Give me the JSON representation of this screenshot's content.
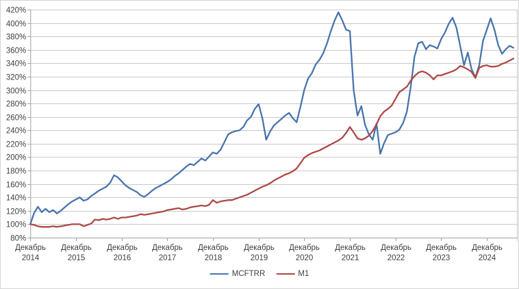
{
  "chart_data": {
    "type": "line",
    "title": "",
    "grid": true,
    "legend_position": "bottom-center",
    "y_axis": {
      "min": 80,
      "max": 420,
      "step": 20,
      "format": "percent"
    },
    "y_tick_labels": [
      "420%",
      "400%",
      "380%",
      "360%",
      "340%",
      "320%",
      "300%",
      "280%",
      "260%",
      "240%",
      "220%",
      "200%",
      "180%",
      "160%",
      "140%",
      "120%",
      "100%",
      "80%"
    ],
    "x_tick_month_word": "Декабрь",
    "x_tick_years": [
      "2014",
      "2015",
      "2016",
      "2017",
      "2018",
      "2019",
      "2020",
      "2021",
      "2022",
      "2023",
      "2024"
    ],
    "months_per_tick": 12,
    "series": [
      {
        "name": "MCFTRR",
        "color": "#4874AE",
        "values": [
          100,
          117,
          126,
          118,
          123,
          118,
          121,
          116,
          120,
          125,
          130,
          134,
          137,
          140,
          135,
          137,
          142,
          146,
          150,
          153,
          156,
          162,
          173,
          170,
          164,
          158,
          154,
          151,
          148,
          143,
          141,
          145,
          150,
          154,
          157,
          160,
          163,
          167,
          172,
          176,
          181,
          186,
          190,
          188,
          193,
          198,
          195,
          201,
          207,
          205,
          211,
          222,
          234,
          237,
          239,
          240,
          245,
          255,
          260,
          272,
          279,
          258,
          226,
          238,
          247,
          252,
          257,
          262,
          266,
          258,
          252,
          275,
          300,
          317,
          325,
          338,
          345,
          355,
          370,
          388,
          404,
          416,
          404,
          390,
          388,
          300,
          262,
          276,
          248,
          234,
          226,
          250,
          205,
          221,
          233,
          235,
          237,
          241,
          251,
          268,
          305,
          350,
          370,
          372,
          361,
          367,
          365,
          362,
          376,
          386,
          399,
          408,
          393,
          366,
          337,
          356,
          331,
          319,
          337,
          373,
          390,
          407,
          390,
          367,
          354,
          361,
          366,
          363
        ]
      },
      {
        "name": "M1",
        "color": "#AC4845",
        "values": [
          100,
          99,
          97,
          96,
          96,
          96,
          97,
          96,
          97,
          98,
          99,
          100,
          100,
          100,
          97,
          99,
          101,
          107,
          106,
          108,
          107,
          108,
          110,
          108,
          110,
          110,
          111,
          112,
          113,
          115,
          114,
          115,
          116,
          117,
          118,
          119,
          121,
          122,
          123,
          124,
          122,
          123,
          125,
          126,
          127,
          128,
          127,
          129,
          136,
          132,
          134,
          135,
          136,
          136,
          138,
          140,
          142,
          144,
          147,
          150,
          153,
          156,
          158,
          161,
          165,
          168,
          171,
          174,
          176,
          179,
          183,
          191,
          199,
          203,
          206,
          208,
          210,
          213,
          216,
          219,
          222,
          225,
          229,
          236,
          245,
          237,
          228,
          226,
          228,
          232,
          239,
          249,
          261,
          268,
          272,
          277,
          287,
          297,
          301,
          305,
          314,
          321,
          326,
          328,
          326,
          322,
          316,
          322,
          322,
          324,
          326,
          328,
          331,
          336,
          334,
          331,
          327,
          318,
          333,
          336,
          337,
          335,
          335,
          336,
          339,
          341,
          344,
          347
        ]
      }
    ],
    "colors": {
      "gridline": "#c9c9c9",
      "axis": "#9e9e9e",
      "tick_text": "#3f3f3f",
      "background": "#ffffff"
    }
  },
  "legend": {
    "items": [
      {
        "label": "MCFTRR"
      },
      {
        "label": "M1"
      }
    ]
  }
}
